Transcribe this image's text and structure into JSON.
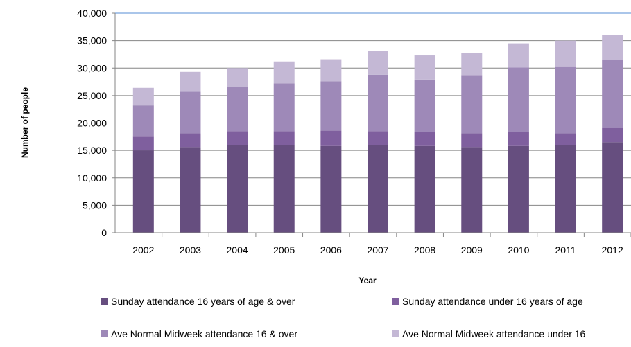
{
  "chart_data": {
    "type": "bar",
    "stacked": true,
    "title": "",
    "xlabel": "Year",
    "ylabel": "Number of people",
    "ylim": [
      0,
      40000
    ],
    "yticks": [
      "0",
      "5,000",
      "10,000",
      "15,000",
      "20,000",
      "25,000",
      "30,000",
      "35,000",
      "40,000"
    ],
    "categories": [
      "2002",
      "2003",
      "2004",
      "2005",
      "2006",
      "2007",
      "2008",
      "2009",
      "2010",
      "2011",
      "2012"
    ],
    "grid": "horizontal",
    "legend_position": "bottom",
    "series": [
      {
        "name": "Sunday attendance 16 years of age & over",
        "color": "#664e7f",
        "values": [
          15000,
          15600,
          15900,
          16000,
          15800,
          15900,
          15800,
          15600,
          15800,
          15900,
          16500
        ]
      },
      {
        "name": "Sunday attendance under 16 years of age",
        "color": "#7f5f9e",
        "values": [
          2500,
          2500,
          2600,
          2500,
          2800,
          2600,
          2500,
          2500,
          2600,
          2200,
          2600
        ]
      },
      {
        "name": "Ave Normal Midweek attendance 16 & over",
        "color": "#9e89b8",
        "values": [
          5700,
          7600,
          8100,
          8700,
          9000,
          10300,
          9600,
          10500,
          11700,
          12100,
          12400
        ]
      },
      {
        "name": "Ave Normal Midweek attendance under 16",
        "color": "#c4b8d5",
        "values": [
          3200,
          3600,
          3400,
          4000,
          4000,
          4300,
          4400,
          4100,
          4400,
          4800,
          4500
        ]
      }
    ]
  }
}
